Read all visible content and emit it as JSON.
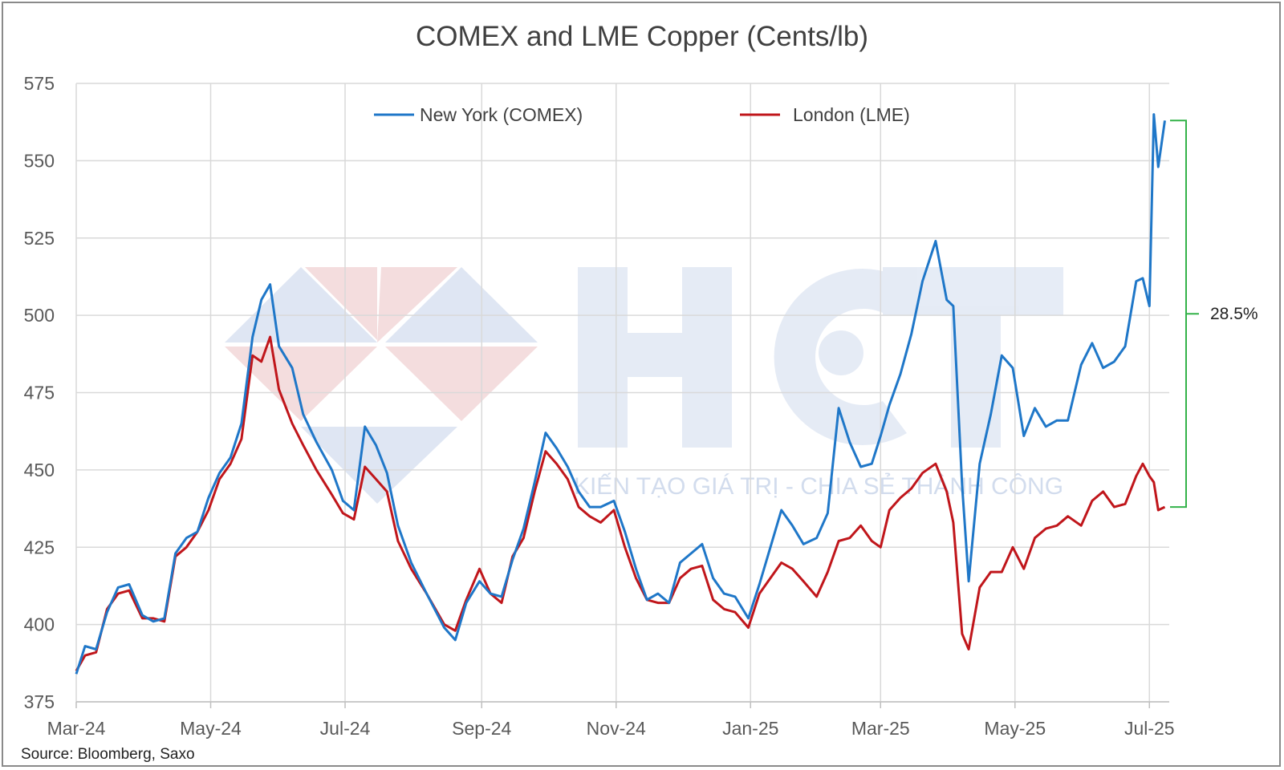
{
  "chart_data": {
    "type": "line",
    "title": "COMEX and LME Copper (Cents/lb)",
    "source": "Source: Bloomberg, Saxo",
    "xlabel": "",
    "ylabel": "",
    "ylim": [
      375,
      575
    ],
    "yticks": [
      375,
      400,
      425,
      450,
      475,
      500,
      525,
      550,
      575
    ],
    "xlim": [
      "2024-03-01",
      "2025-07-10"
    ],
    "xticks": [
      {
        "label": "Mar-24",
        "date": "2024-03-01"
      },
      {
        "label": "May-24",
        "date": "2024-05-01"
      },
      {
        "label": "Jul-24",
        "date": "2024-07-01"
      },
      {
        "label": "Sep-24",
        "date": "2024-09-01"
      },
      {
        "label": "Nov-24",
        "date": "2024-11-01"
      },
      {
        "label": "Jan-25",
        "date": "2025-01-01"
      },
      {
        "label": "Mar-25",
        "date": "2025-03-01"
      },
      {
        "label": "May-25",
        "date": "2025-05-01"
      },
      {
        "label": "Jul-25",
        "date": "2025-07-01"
      }
    ],
    "grid": true,
    "legend": "top-center",
    "watermark": {
      "name": "HCT",
      "tagline": "KIẾN TẠO GIÁ TRỊ - CHIA SẺ THÀNH CÔNG"
    },
    "annotation": {
      "label": "28.5%",
      "from": 438,
      "to": 563
    },
    "series": [
      {
        "name": "New York (COMEX)",
        "color": "#1f77c8",
        "points": [
          [
            "2024-03-01",
            384
          ],
          [
            "2024-03-05",
            393
          ],
          [
            "2024-03-10",
            392
          ],
          [
            "2024-03-15",
            404
          ],
          [
            "2024-03-20",
            412
          ],
          [
            "2024-03-25",
            413
          ],
          [
            "2024-03-31",
            403
          ],
          [
            "2024-04-05",
            401
          ],
          [
            "2024-04-10",
            402
          ],
          [
            "2024-04-15",
            423
          ],
          [
            "2024-04-20",
            428
          ],
          [
            "2024-04-25",
            430
          ],
          [
            "2024-04-30",
            441
          ],
          [
            "2024-05-05",
            449
          ],
          [
            "2024-05-10",
            454
          ],
          [
            "2024-05-15",
            465
          ],
          [
            "2024-05-20",
            493
          ],
          [
            "2024-05-24",
            505
          ],
          [
            "2024-05-28",
            510
          ],
          [
            "2024-06-01",
            490
          ],
          [
            "2024-06-07",
            483
          ],
          [
            "2024-06-12",
            468
          ],
          [
            "2024-06-18",
            459
          ],
          [
            "2024-06-25",
            450
          ],
          [
            "2024-06-30",
            440
          ],
          [
            "2024-07-05",
            437
          ],
          [
            "2024-07-10",
            464
          ],
          [
            "2024-07-15",
            458
          ],
          [
            "2024-07-20",
            449
          ],
          [
            "2024-07-25",
            432
          ],
          [
            "2024-07-31",
            420
          ],
          [
            "2024-08-07",
            410
          ],
          [
            "2024-08-15",
            399
          ],
          [
            "2024-08-20",
            395
          ],
          [
            "2024-08-25",
            407
          ],
          [
            "2024-08-31",
            414
          ],
          [
            "2024-09-05",
            410
          ],
          [
            "2024-09-10",
            409
          ],
          [
            "2024-09-15",
            421
          ],
          [
            "2024-09-20",
            431
          ],
          [
            "2024-09-25",
            446
          ],
          [
            "2024-09-30",
            462
          ],
          [
            "2024-10-05",
            457
          ],
          [
            "2024-10-10",
            451
          ],
          [
            "2024-10-15",
            443
          ],
          [
            "2024-10-20",
            438
          ],
          [
            "2024-10-25",
            438
          ],
          [
            "2024-10-31",
            440
          ],
          [
            "2024-11-05",
            430
          ],
          [
            "2024-11-10",
            418
          ],
          [
            "2024-11-15",
            408
          ],
          [
            "2024-11-20",
            410
          ],
          [
            "2024-11-25",
            407
          ],
          [
            "2024-11-30",
            420
          ],
          [
            "2024-12-05",
            423
          ],
          [
            "2024-12-10",
            426
          ],
          [
            "2024-12-15",
            415
          ],
          [
            "2024-12-20",
            410
          ],
          [
            "2024-12-25",
            409
          ],
          [
            "2024-12-31",
            402
          ],
          [
            "2025-01-05",
            413
          ],
          [
            "2025-01-10",
            425
          ],
          [
            "2025-01-15",
            437
          ],
          [
            "2025-01-20",
            432
          ],
          [
            "2025-01-25",
            426
          ],
          [
            "2025-01-31",
            428
          ],
          [
            "2025-02-05",
            436
          ],
          [
            "2025-02-10",
            470
          ],
          [
            "2025-02-15",
            459
          ],
          [
            "2025-02-20",
            451
          ],
          [
            "2025-02-25",
            452
          ],
          [
            "2025-03-01",
            461
          ],
          [
            "2025-03-05",
            471
          ],
          [
            "2025-03-10",
            481
          ],
          [
            "2025-03-15",
            494
          ],
          [
            "2025-03-20",
            511
          ],
          [
            "2025-03-26",
            524
          ],
          [
            "2025-03-31",
            505
          ],
          [
            "2025-04-03",
            503
          ],
          [
            "2025-04-07",
            445
          ],
          [
            "2025-04-10",
            414
          ],
          [
            "2025-04-15",
            452
          ],
          [
            "2025-04-20",
            468
          ],
          [
            "2025-04-25",
            487
          ],
          [
            "2025-04-30",
            483
          ],
          [
            "2025-05-05",
            461
          ],
          [
            "2025-05-10",
            470
          ],
          [
            "2025-05-15",
            464
          ],
          [
            "2025-05-20",
            466
          ],
          [
            "2025-05-25",
            466
          ],
          [
            "2025-05-31",
            484
          ],
          [
            "2025-06-05",
            491
          ],
          [
            "2025-06-10",
            483
          ],
          [
            "2025-06-15",
            485
          ],
          [
            "2025-06-20",
            490
          ],
          [
            "2025-06-25",
            511
          ],
          [
            "2025-06-28",
            512
          ],
          [
            "2025-07-01",
            503
          ],
          [
            "2025-07-03",
            565
          ],
          [
            "2025-07-05",
            548
          ],
          [
            "2025-07-08",
            563
          ]
        ]
      },
      {
        "name": "London (LME)",
        "color": "#c0161b",
        "points": [
          [
            "2024-03-01",
            385
          ],
          [
            "2024-03-05",
            390
          ],
          [
            "2024-03-10",
            391
          ],
          [
            "2024-03-15",
            405
          ],
          [
            "2024-03-20",
            410
          ],
          [
            "2024-03-25",
            411
          ],
          [
            "2024-03-31",
            402
          ],
          [
            "2024-04-05",
            402
          ],
          [
            "2024-04-10",
            401
          ],
          [
            "2024-04-15",
            422
          ],
          [
            "2024-04-20",
            425
          ],
          [
            "2024-04-25",
            430
          ],
          [
            "2024-04-30",
            437
          ],
          [
            "2024-05-05",
            447
          ],
          [
            "2024-05-10",
            452
          ],
          [
            "2024-05-15",
            460
          ],
          [
            "2024-05-20",
            487
          ],
          [
            "2024-05-24",
            485
          ],
          [
            "2024-05-28",
            493
          ],
          [
            "2024-06-01",
            476
          ],
          [
            "2024-06-07",
            465
          ],
          [
            "2024-06-12",
            458
          ],
          [
            "2024-06-18",
            450
          ],
          [
            "2024-06-25",
            442
          ],
          [
            "2024-06-30",
            436
          ],
          [
            "2024-07-05",
            434
          ],
          [
            "2024-07-10",
            451
          ],
          [
            "2024-07-15",
            447
          ],
          [
            "2024-07-20",
            443
          ],
          [
            "2024-07-25",
            427
          ],
          [
            "2024-07-31",
            418
          ],
          [
            "2024-08-07",
            410
          ],
          [
            "2024-08-15",
            400
          ],
          [
            "2024-08-20",
            398
          ],
          [
            "2024-08-25",
            408
          ],
          [
            "2024-08-31",
            418
          ],
          [
            "2024-09-05",
            410
          ],
          [
            "2024-09-10",
            407
          ],
          [
            "2024-09-15",
            422
          ],
          [
            "2024-09-20",
            428
          ],
          [
            "2024-09-25",
            443
          ],
          [
            "2024-09-30",
            456
          ],
          [
            "2024-10-05",
            452
          ],
          [
            "2024-10-10",
            447
          ],
          [
            "2024-10-15",
            438
          ],
          [
            "2024-10-20",
            435
          ],
          [
            "2024-10-25",
            433
          ],
          [
            "2024-10-31",
            437
          ],
          [
            "2024-11-05",
            425
          ],
          [
            "2024-11-10",
            415
          ],
          [
            "2024-11-15",
            408
          ],
          [
            "2024-11-20",
            407
          ],
          [
            "2024-11-25",
            407
          ],
          [
            "2024-11-30",
            415
          ],
          [
            "2024-12-05",
            418
          ],
          [
            "2024-12-10",
            419
          ],
          [
            "2024-12-15",
            408
          ],
          [
            "2024-12-20",
            405
          ],
          [
            "2024-12-25",
            404
          ],
          [
            "2024-12-31",
            399
          ],
          [
            "2025-01-05",
            410
          ],
          [
            "2025-01-10",
            415
          ],
          [
            "2025-01-15",
            420
          ],
          [
            "2025-01-20",
            418
          ],
          [
            "2025-01-25",
            414
          ],
          [
            "2025-01-31",
            409
          ],
          [
            "2025-02-05",
            417
          ],
          [
            "2025-02-10",
            427
          ],
          [
            "2025-02-15",
            428
          ],
          [
            "2025-02-20",
            432
          ],
          [
            "2025-02-25",
            427
          ],
          [
            "2025-03-01",
            425
          ],
          [
            "2025-03-05",
            437
          ],
          [
            "2025-03-10",
            441
          ],
          [
            "2025-03-15",
            444
          ],
          [
            "2025-03-20",
            449
          ],
          [
            "2025-03-26",
            452
          ],
          [
            "2025-03-31",
            443
          ],
          [
            "2025-04-03",
            433
          ],
          [
            "2025-04-07",
            397
          ],
          [
            "2025-04-10",
            392
          ],
          [
            "2025-04-15",
            412
          ],
          [
            "2025-04-20",
            417
          ],
          [
            "2025-04-25",
            417
          ],
          [
            "2025-04-30",
            425
          ],
          [
            "2025-05-05",
            418
          ],
          [
            "2025-05-10",
            428
          ],
          [
            "2025-05-15",
            431
          ],
          [
            "2025-05-20",
            432
          ],
          [
            "2025-05-25",
            435
          ],
          [
            "2025-05-31",
            432
          ],
          [
            "2025-06-05",
            440
          ],
          [
            "2025-06-10",
            443
          ],
          [
            "2025-06-15",
            438
          ],
          [
            "2025-06-20",
            439
          ],
          [
            "2025-06-25",
            448
          ],
          [
            "2025-06-28",
            452
          ],
          [
            "2025-07-01",
            448
          ],
          [
            "2025-07-03",
            446
          ],
          [
            "2025-07-05",
            437
          ],
          [
            "2025-07-08",
            438
          ]
        ]
      }
    ]
  }
}
